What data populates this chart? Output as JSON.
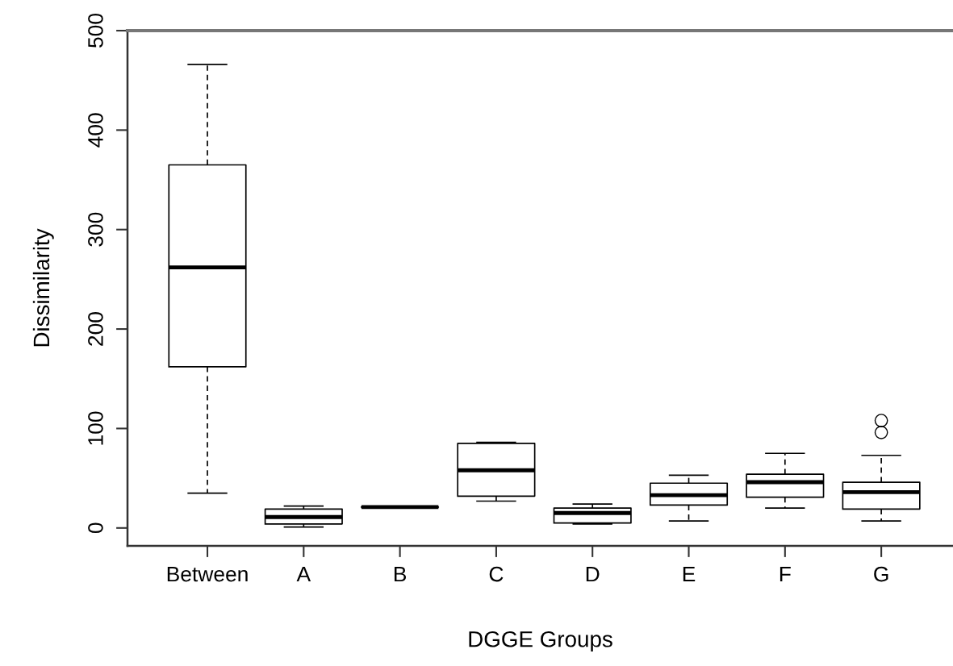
{
  "chart_data": {
    "type": "box",
    "xlabel": "DGGE Groups",
    "ylabel": "Dissimilarity",
    "categories": [
      "Between",
      "A",
      "B",
      "C",
      "D",
      "E",
      "F",
      "G"
    ],
    "boxes": [
      {
        "low": 35,
        "q1": 162,
        "median": 262,
        "q3": 365,
        "high": 466
      },
      {
        "low": 1,
        "q1": 4,
        "median": 11,
        "q3": 19,
        "high": 22
      },
      {
        "low": 21,
        "q1": 21,
        "median": 21,
        "q3": 21,
        "high": 21
      },
      {
        "low": 27,
        "q1": 32,
        "median": 58,
        "q3": 85,
        "high": 86
      },
      {
        "low": 4,
        "q1": 5,
        "median": 15,
        "q3": 20,
        "high": 24
      },
      {
        "low": 7,
        "q1": 23,
        "median": 33,
        "q3": 45,
        "high": 53
      },
      {
        "low": 20,
        "q1": 31,
        "median": 46,
        "q3": 54,
        "high": 75
      },
      {
        "low": 7,
        "q1": 19,
        "median": 36,
        "q3": 46,
        "high": 73,
        "outliers": [
          96,
          108
        ]
      }
    ],
    "ylim": [
      -18,
      500
    ],
    "yticks": [
      0,
      100,
      200,
      300,
      400,
      500
    ],
    "grid": false
  }
}
